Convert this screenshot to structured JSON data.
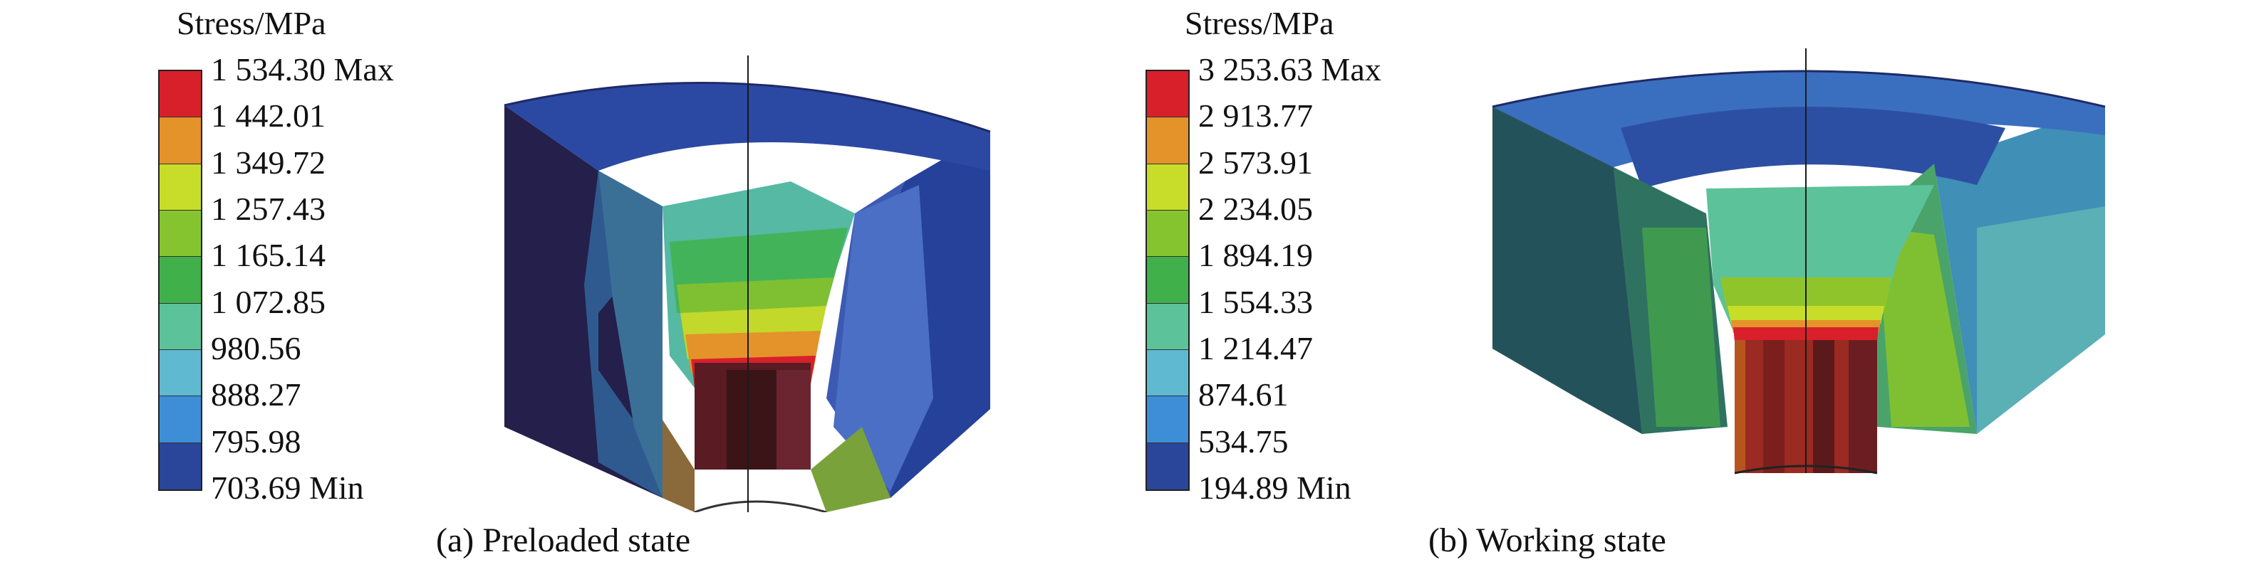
{
  "panels": [
    {
      "id": "a",
      "legend": {
        "title": "Stress/MPa",
        "colors": [
          "#d7202a",
          "#e4922a",
          "#c8dd2a",
          "#86c42f",
          "#3fb04a",
          "#5cc29a",
          "#5fb9d0",
          "#3d8ed6",
          "#2a469a"
        ],
        "labels": [
          "1 534.30 Max",
          "1 442.01",
          "1 349.72",
          "1 257.43",
          "1 165.14",
          "1 072.85",
          "980.56",
          "888.27",
          "795.98",
          "703.69 Min"
        ]
      },
      "caption": "(a) Preloaded state"
    },
    {
      "id": "b",
      "legend": {
        "title": "Stress/MPa",
        "colors": [
          "#d7202a",
          "#e4922a",
          "#c8dd2a",
          "#86c42f",
          "#3fb04a",
          "#5cc29a",
          "#5fb9d0",
          "#3d8ed6",
          "#2a469a"
        ],
        "labels": [
          "3 253.63 Max",
          "2 913.77",
          "2 573.91",
          "2 234.05",
          "1 894.19",
          "1 554.33",
          "1 214.47",
          "874.61",
          "534.75",
          "194.89 Min"
        ]
      },
      "caption": "(b) Working state"
    }
  ]
}
